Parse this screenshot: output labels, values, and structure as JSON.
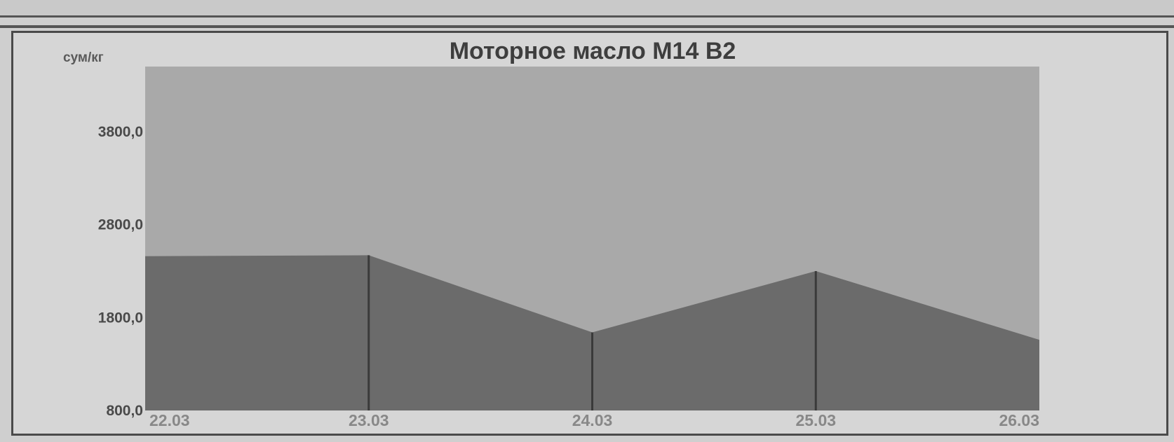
{
  "chart_data": {
    "type": "area",
    "title": "Моторное масло М14 В2",
    "ylabel": "сум/кг",
    "xlabel": "",
    "categories": [
      "22.03",
      "23.03",
      "24.03",
      "25.03",
      "26.03"
    ],
    "values": [
      2460,
      2470,
      1640,
      2300,
      1560
    ],
    "ylim": [
      800,
      4500
    ],
    "yticks": [
      "800,0",
      "1800,0",
      "2800,0",
      "3800,0"
    ],
    "ytick_values": [
      800,
      1800,
      2800,
      3800
    ],
    "grid": false,
    "legend": "none",
    "colors": {
      "plot_background": "#a9a9a9",
      "area_fill": "#6b6b6b",
      "area_edge": "#3a3a3a",
      "page_background": "#d6d6d6"
    }
  }
}
